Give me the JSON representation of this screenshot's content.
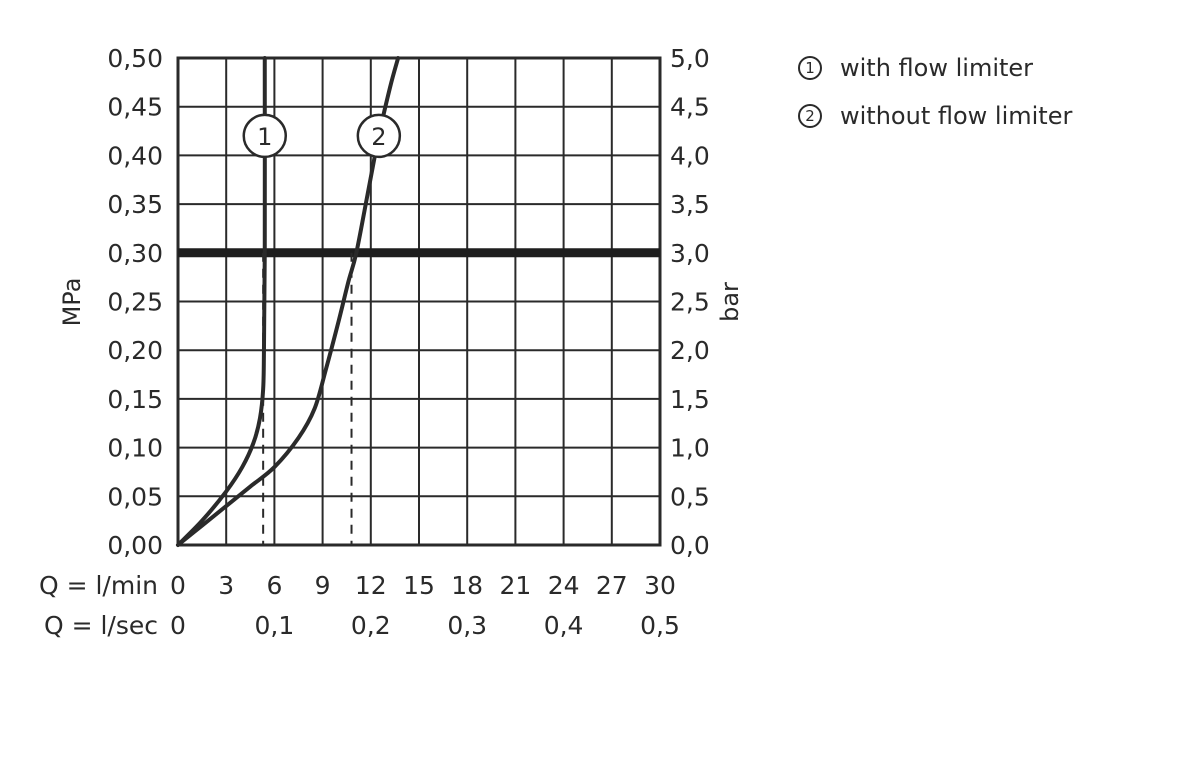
{
  "chart_data": {
    "type": "line",
    "y_left": {
      "label": "MPa",
      "range": [
        0,
        0.5
      ],
      "step": 0.05,
      "ticks": [
        "0,00",
        "0,05",
        "0,10",
        "0,15",
        "0,20",
        "0,25",
        "0,30",
        "0,35",
        "0,40",
        "0,45",
        "0,50"
      ]
    },
    "y_right": {
      "label": "bar",
      "range": [
        0,
        5.0
      ],
      "step": 0.5,
      "ticks": [
        "0,0",
        "0,5",
        "1,0",
        "1,5",
        "2,0",
        "2,5",
        "3,0",
        "3,5",
        "4,0",
        "4,5",
        "5,0"
      ]
    },
    "x_lmin": {
      "label": "Q = l/min",
      "range": [
        0,
        30
      ],
      "ticks": [
        "0",
        "3",
        "6",
        "9",
        "12",
        "15",
        "18",
        "21",
        "24",
        "27",
        "30"
      ],
      "tick_values": [
        0,
        3,
        6,
        9,
        12,
        15,
        18,
        21,
        24,
        27,
        30
      ]
    },
    "x_lsec": {
      "label": "Q = l/sec",
      "ticks": [
        "0",
        "0,1",
        "0,2",
        "0,3",
        "0,4",
        "0,5"
      ],
      "tick_values": [
        0,
        6,
        12,
        18,
        24,
        30
      ]
    },
    "grid": true,
    "reference_line": {
      "y": 0.3
    },
    "series": [
      {
        "marker": "1",
        "name": "with flow limiter",
        "points": [
          [
            0,
            0
          ],
          [
            1.5,
            0.025
          ],
          [
            3,
            0.055
          ],
          [
            4,
            0.08
          ],
          [
            4.7,
            0.105
          ],
          [
            5.1,
            0.13
          ],
          [
            5.3,
            0.16
          ],
          [
            5.35,
            0.2
          ],
          [
            5.4,
            0.3
          ],
          [
            5.4,
            0.5
          ]
        ],
        "dashed_x": 5.3
      },
      {
        "marker": "2",
        "name": "without flow limiter",
        "points": [
          [
            0,
            0
          ],
          [
            1.5,
            0.02
          ],
          [
            3,
            0.04
          ],
          [
            4.5,
            0.06
          ],
          [
            6,
            0.08
          ],
          [
            7.5,
            0.11
          ],
          [
            8.5,
            0.14
          ],
          [
            9.2,
            0.18
          ],
          [
            10,
            0.23
          ],
          [
            10.6,
            0.27
          ],
          [
            11.1,
            0.3
          ],
          [
            11.8,
            0.36
          ],
          [
            12.5,
            0.42
          ],
          [
            13.2,
            0.47
          ],
          [
            13.7,
            0.5
          ]
        ],
        "dashed_x": 10.8
      }
    ],
    "legend": [
      {
        "marker": "①",
        "label": "with flow limiter"
      },
      {
        "marker": "②",
        "label": "without flow limiter"
      }
    ]
  },
  "colors": {
    "ink": "#2a2a2a",
    "background": "#ffffff"
  }
}
